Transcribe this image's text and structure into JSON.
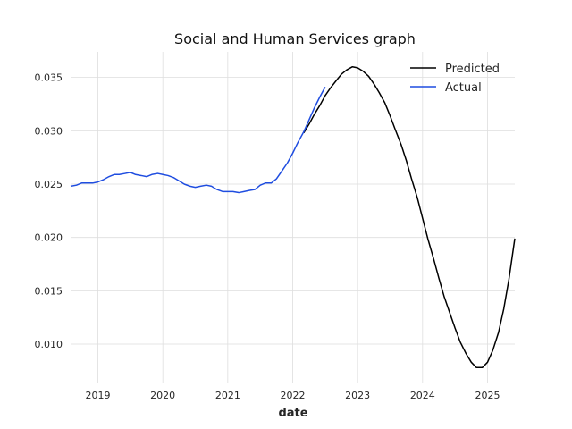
{
  "chart_data": {
    "type": "line",
    "title": "Social and Human Services graph",
    "xlabel": "date",
    "ylabel": "",
    "x_is_date": true,
    "xlim": [
      2018.58,
      2025.42
    ],
    "ylim": [
      0.0064,
      0.0374
    ],
    "x_ticks": [
      2019,
      2020,
      2021,
      2022,
      2023,
      2024,
      2025
    ],
    "x_tick_labels": [
      "2019",
      "2020",
      "2021",
      "2022",
      "2023",
      "2024",
      "2025"
    ],
    "y_ticks": [
      0.01,
      0.015,
      0.02,
      0.025,
      0.03,
      0.035
    ],
    "y_tick_labels": [
      "0.010",
      "0.015",
      "0.020",
      "0.025",
      "0.030",
      "0.035"
    ],
    "grid": true,
    "legend_position": "top-right",
    "series": [
      {
        "name": "Predicted",
        "color": "#000000",
        "points": [
          [
            2022.17,
            0.0298
          ],
          [
            2022.25,
            0.0306
          ],
          [
            2022.33,
            0.0315
          ],
          [
            2022.42,
            0.0324
          ],
          [
            2022.5,
            0.0333
          ],
          [
            2022.58,
            0.034
          ],
          [
            2022.67,
            0.0347
          ],
          [
            2022.75,
            0.0353
          ],
          [
            2022.83,
            0.0357
          ],
          [
            2022.92,
            0.036
          ],
          [
            2023.0,
            0.0359
          ],
          [
            2023.08,
            0.0356
          ],
          [
            2023.17,
            0.0351
          ],
          [
            2023.25,
            0.0344
          ],
          [
            2023.33,
            0.0336
          ],
          [
            2023.42,
            0.0326
          ],
          [
            2023.5,
            0.0314
          ],
          [
            2023.58,
            0.0301
          ],
          [
            2023.67,
            0.0287
          ],
          [
            2023.75,
            0.0272
          ],
          [
            2023.83,
            0.0255
          ],
          [
            2023.92,
            0.0237
          ],
          [
            2024.0,
            0.0218
          ],
          [
            2024.08,
            0.0199
          ],
          [
            2024.17,
            0.018
          ],
          [
            2024.25,
            0.0162
          ],
          [
            2024.33,
            0.0145
          ],
          [
            2024.42,
            0.0129
          ],
          [
            2024.5,
            0.0115
          ],
          [
            2024.58,
            0.0102
          ],
          [
            2024.67,
            0.0091
          ],
          [
            2024.75,
            0.0083
          ],
          [
            2024.83,
            0.0078
          ],
          [
            2024.92,
            0.0078
          ],
          [
            2025.0,
            0.0083
          ],
          [
            2025.08,
            0.0094
          ],
          [
            2025.17,
            0.0111
          ],
          [
            2025.25,
            0.0133
          ],
          [
            2025.33,
            0.0161
          ],
          [
            2025.42,
            0.0199
          ]
        ]
      },
      {
        "name": "Actual",
        "color": "#1f4de0",
        "points": [
          [
            2018.58,
            0.0248
          ],
          [
            2018.67,
            0.0249
          ],
          [
            2018.75,
            0.0251
          ],
          [
            2018.83,
            0.0251
          ],
          [
            2018.92,
            0.0251
          ],
          [
            2019.0,
            0.0252
          ],
          [
            2019.08,
            0.0254
          ],
          [
            2019.17,
            0.0257
          ],
          [
            2019.25,
            0.0259
          ],
          [
            2019.33,
            0.0259
          ],
          [
            2019.42,
            0.026
          ],
          [
            2019.5,
            0.0261
          ],
          [
            2019.58,
            0.0259
          ],
          [
            2019.67,
            0.0258
          ],
          [
            2019.75,
            0.0257
          ],
          [
            2019.83,
            0.0259
          ],
          [
            2019.92,
            0.026
          ],
          [
            2020.0,
            0.0259
          ],
          [
            2020.08,
            0.0258
          ],
          [
            2020.17,
            0.0256
          ],
          [
            2020.25,
            0.0253
          ],
          [
            2020.33,
            0.025
          ],
          [
            2020.42,
            0.0248
          ],
          [
            2020.5,
            0.0247
          ],
          [
            2020.58,
            0.0248
          ],
          [
            2020.67,
            0.0249
          ],
          [
            2020.75,
            0.0248
          ],
          [
            2020.83,
            0.0245
          ],
          [
            2020.92,
            0.0243
          ],
          [
            2021.0,
            0.0243
          ],
          [
            2021.08,
            0.0243
          ],
          [
            2021.17,
            0.0242
          ],
          [
            2021.25,
            0.0243
          ],
          [
            2021.33,
            0.0244
          ],
          [
            2021.42,
            0.0245
          ],
          [
            2021.5,
            0.0249
          ],
          [
            2021.58,
            0.0251
          ],
          [
            2021.67,
            0.0251
          ],
          [
            2021.75,
            0.0255
          ],
          [
            2021.83,
            0.0262
          ],
          [
            2021.92,
            0.027
          ],
          [
            2022.0,
            0.0279
          ],
          [
            2022.08,
            0.0289
          ],
          [
            2022.17,
            0.0299
          ],
          [
            2022.25,
            0.031
          ],
          [
            2022.33,
            0.0321
          ],
          [
            2022.42,
            0.0332
          ],
          [
            2022.5,
            0.0341
          ]
        ]
      }
    ]
  }
}
